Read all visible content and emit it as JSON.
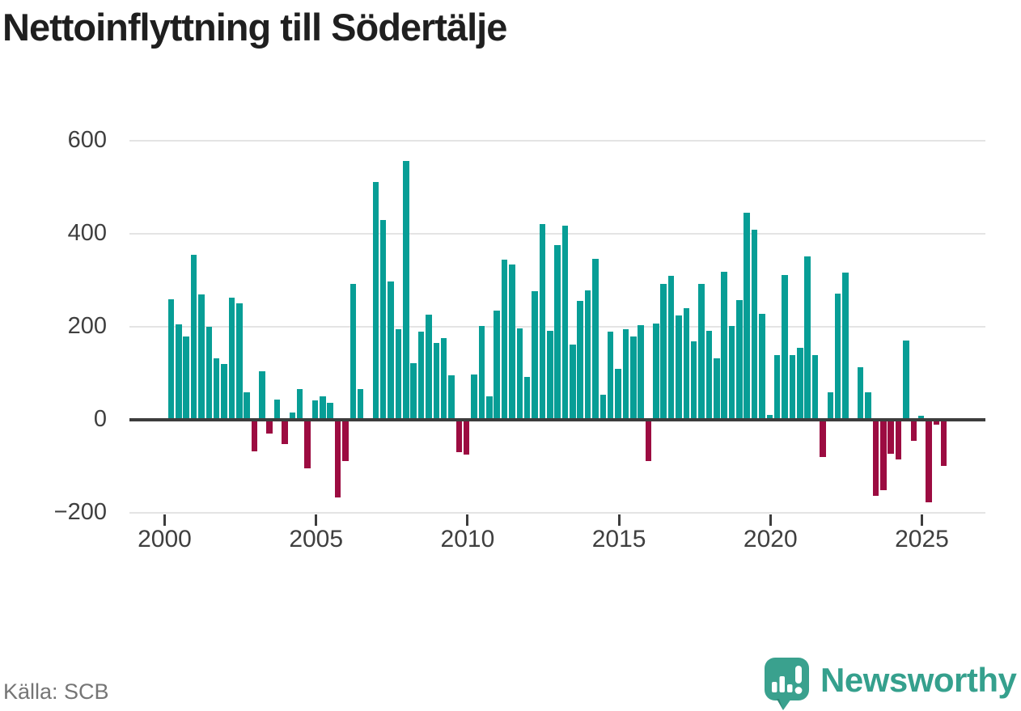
{
  "title": "Nettoinflyttning till Södertälje",
  "source": "Källa: SCB",
  "logo": {
    "wordmark": "Newsworthy"
  },
  "colors": {
    "positive_bar": "#079e96",
    "negative_bar": "#9c0c41",
    "zero_axis": "#3d3d3d",
    "gridline": "#e4e4e4",
    "logo_teal": "#3aa18e",
    "logo_tail_shade": "#2f8676",
    "wordmark_teal": "#35a08d"
  },
  "chart_data": {
    "type": "bar",
    "title": "Nettoinflyttning till Södertälje",
    "xlabel": "",
    "ylabel": "",
    "ylim": [
      -200,
      620
    ],
    "grid": "horizontal",
    "legend": "none",
    "y_ticks": [
      600,
      400,
      200,
      0,
      -200
    ],
    "y_tick_labels": [
      "600",
      "400",
      "200",
      "0",
      "−200"
    ],
    "x_tick_labels": [
      "2000",
      "2005",
      "2010",
      "2015",
      "2020",
      "2025"
    ],
    "x_frequency": "quarterly",
    "x_start": "2000 Q1",
    "x_end": "2025 Q3",
    "quarters": [
      "2000 Q1",
      "2000 Q2",
      "2000 Q3",
      "2000 Q4",
      "2001 Q1",
      "2001 Q2",
      "2001 Q3",
      "2001 Q4",
      "2002 Q1",
      "2002 Q2",
      "2002 Q3",
      "2002 Q4",
      "2003 Q1",
      "2003 Q2",
      "2003 Q3",
      "2003 Q4",
      "2004 Q1",
      "2004 Q2",
      "2004 Q3",
      "2004 Q4",
      "2005 Q1",
      "2005 Q2",
      "2005 Q3",
      "2005 Q4",
      "2006 Q1",
      "2006 Q2",
      "2006 Q3",
      "2006 Q4",
      "2007 Q1",
      "2007 Q2",
      "2007 Q3",
      "2007 Q4",
      "2008 Q1",
      "2008 Q2",
      "2008 Q3",
      "2008 Q4",
      "2009 Q1",
      "2009 Q2",
      "2009 Q3",
      "2009 Q4",
      "2010 Q1",
      "2010 Q2",
      "2010 Q3",
      "2010 Q4",
      "2011 Q1",
      "2011 Q2",
      "2011 Q3",
      "2011 Q4",
      "2012 Q1",
      "2012 Q2",
      "2012 Q3",
      "2012 Q4",
      "2013 Q1",
      "2013 Q2",
      "2013 Q3",
      "2013 Q4",
      "2014 Q1",
      "2014 Q2",
      "2014 Q3",
      "2014 Q4",
      "2015 Q1",
      "2015 Q2",
      "2015 Q3",
      "2015 Q4",
      "2016 Q1",
      "2016 Q2",
      "2016 Q3",
      "2016 Q4",
      "2017 Q1",
      "2017 Q2",
      "2017 Q3",
      "2017 Q4",
      "2018 Q1",
      "2018 Q2",
      "2018 Q3",
      "2018 Q4",
      "2019 Q1",
      "2019 Q2",
      "2019 Q3",
      "2019 Q4",
      "2020 Q1",
      "2020 Q2",
      "2020 Q3",
      "2020 Q4",
      "2021 Q1",
      "2021 Q2",
      "2021 Q3",
      "2021 Q4",
      "2022 Q1",
      "2022 Q2",
      "2022 Q3",
      "2022 Q4",
      "2023 Q1",
      "2023 Q2",
      "2023 Q3",
      "2023 Q4",
      "2024 Q1",
      "2024 Q2",
      "2024 Q3",
      "2024 Q4",
      "2025 Q1",
      "2025 Q2",
      "2025 Q3"
    ],
    "values": [
      260,
      205,
      180,
      355,
      270,
      200,
      133,
      120,
      263,
      250,
      59,
      -67,
      104,
      -30,
      44,
      -52,
      16,
      66,
      -105,
      42,
      50,
      36,
      -167,
      -88,
      292,
      66,
      0,
      511,
      430,
      298,
      194,
      557,
      121,
      190,
      227,
      166,
      176,
      96,
      -70,
      -75,
      98,
      201,
      51,
      235,
      344,
      334,
      197,
      92,
      276,
      421,
      191,
      376,
      417,
      161,
      256,
      279,
      347,
      54,
      190,
      110,
      195,
      180,
      203,
      -88,
      207,
      292,
      310,
      225,
      240,
      169,
      292,
      191,
      132,
      319,
      201,
      257,
      445,
      408,
      228,
      10,
      140,
      312,
      140,
      155,
      352,
      140,
      -80,
      59,
      271,
      317,
      0,
      113,
      60,
      -163,
      -151,
      -73,
      -85,
      170,
      -45,
      8,
      -177,
      -10,
      -99
    ]
  }
}
